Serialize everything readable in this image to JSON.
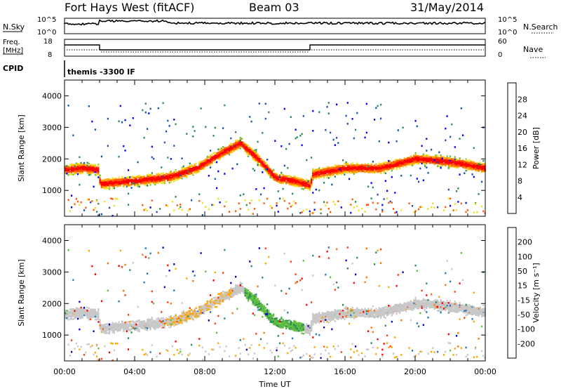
{
  "header": {
    "station": "Fort Hays West (fitACF)",
    "beam": "Beam 03",
    "date": "31/May/2014"
  },
  "strips": {
    "nsky_label": "N.Sky",
    "nsearch_label": "N.Search",
    "nsky_ticks": [
      "10^5",
      "10^0"
    ],
    "nsearch_ticks": [
      "10^5",
      "10^0"
    ],
    "freq_label_1": "Freq.",
    "freq_label_2": "[MHz]",
    "freq_ticks": [
      "18",
      "8"
    ],
    "nave_label": "Nave",
    "nave_ticks": [
      "60",
      "0"
    ],
    "cpid_label": "CPID",
    "cpid_text": "themis -3300 IF"
  },
  "chart_data": [
    {
      "type": "heatmap",
      "name": "power",
      "xlabel": "Time UT",
      "ylabel": "Slant Range [km]",
      "x_ticks": [
        "00:00",
        "04:00",
        "08:00",
        "12:00",
        "16:00",
        "20:00",
        "00:00"
      ],
      "x_range_hours": [
        0,
        24
      ],
      "y_ticks": [
        1000,
        2000,
        3000,
        4000
      ],
      "y_range": [
        180,
        4500
      ],
      "colorbar": {
        "label": "Power [dB]",
        "ticks": [
          "4",
          "8",
          "12",
          "16",
          "20",
          "24",
          "28"
        ],
        "colors": [
          "#0000ff",
          "#1e50b4",
          "#2e8b57",
          "#6cc040",
          "#f0e020",
          "#ffa500",
          "#ff5a00",
          "#ff0000"
        ]
      },
      "main_band": [
        [
          0.0,
          1650
        ],
        [
          1.0,
          1700
        ],
        [
          1.9,
          1650
        ],
        [
          2.0,
          1200
        ],
        [
          4.0,
          1300
        ],
        [
          6.0,
          1420
        ],
        [
          7.5,
          1700
        ],
        [
          9.0,
          2200
        ],
        [
          10.0,
          2500
        ],
        [
          11.0,
          2000
        ],
        [
          12.0,
          1400
        ],
        [
          13.0,
          1300
        ],
        [
          14.0,
          1150
        ],
        [
          14.1,
          1500
        ],
        [
          16.0,
          1700
        ],
        [
          18.0,
          1700
        ],
        [
          20.0,
          2000
        ],
        [
          22.0,
          1900
        ],
        [
          24.0,
          1700
        ]
      ]
    },
    {
      "type": "heatmap",
      "name": "velocity",
      "xlabel": "Time UT",
      "ylabel": "Slant Range [km]",
      "x_ticks": [
        "00:00",
        "04:00",
        "08:00",
        "12:00",
        "16:00",
        "20:00",
        "00:00"
      ],
      "x_range_hours": [
        0,
        24
      ],
      "y_ticks": [
        1000,
        2000,
        3000,
        4000
      ],
      "y_range": [
        180,
        4500
      ],
      "colorbar": {
        "label": "Velocity [m s⁻¹]",
        "ticks": [
          "200",
          "100",
          "50",
          "15",
          "-15",
          "-50",
          "-100",
          "-200"
        ],
        "colors": [
          "#0000c0",
          "#1e78c0",
          "#2e8b57",
          "#60c040",
          "#c8c8c8",
          "#ffa500",
          "#ff7000",
          "#ff4000",
          "#ff0000"
        ]
      }
    }
  ]
}
